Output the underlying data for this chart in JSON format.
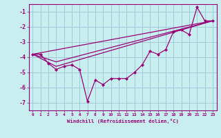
{
  "xlabel": "Windchill (Refroidissement éolien,°C)",
  "bg_color": "#c8eef0",
  "grid_color": "#a0c8d8",
  "line_color": "#990077",
  "x_ticks": [
    0,
    1,
    2,
    3,
    4,
    5,
    6,
    7,
    8,
    9,
    10,
    11,
    12,
    13,
    14,
    15,
    16,
    17,
    18,
    19,
    20,
    21,
    22,
    23
  ],
  "ylim": [
    -7.5,
    -0.5
  ],
  "xlim": [
    -0.5,
    23.5
  ],
  "yticks": [
    -7,
    -6,
    -5,
    -4,
    -3,
    -2,
    -1
  ],
  "series_y": [
    -3.8,
    -3.8,
    -4.4,
    -4.8,
    -4.6,
    -4.5,
    -4.8,
    -6.9,
    -5.5,
    -5.8,
    -5.4,
    -5.4,
    -5.4,
    -5.0,
    -4.5,
    -3.6,
    -3.8,
    -3.5,
    -2.3,
    -2.2,
    -2.5,
    -0.7,
    -1.6,
    -1.6
  ],
  "trend1_x": [
    0,
    23
  ],
  "trend1_y": [
    -3.8,
    -1.6
  ],
  "trend2_x": [
    0,
    3,
    23
  ],
  "trend2_y": [
    -3.8,
    -4.6,
    -1.6
  ],
  "trend3_x": [
    0,
    3,
    23
  ],
  "trend3_y": [
    -3.8,
    -4.3,
    -1.6
  ]
}
